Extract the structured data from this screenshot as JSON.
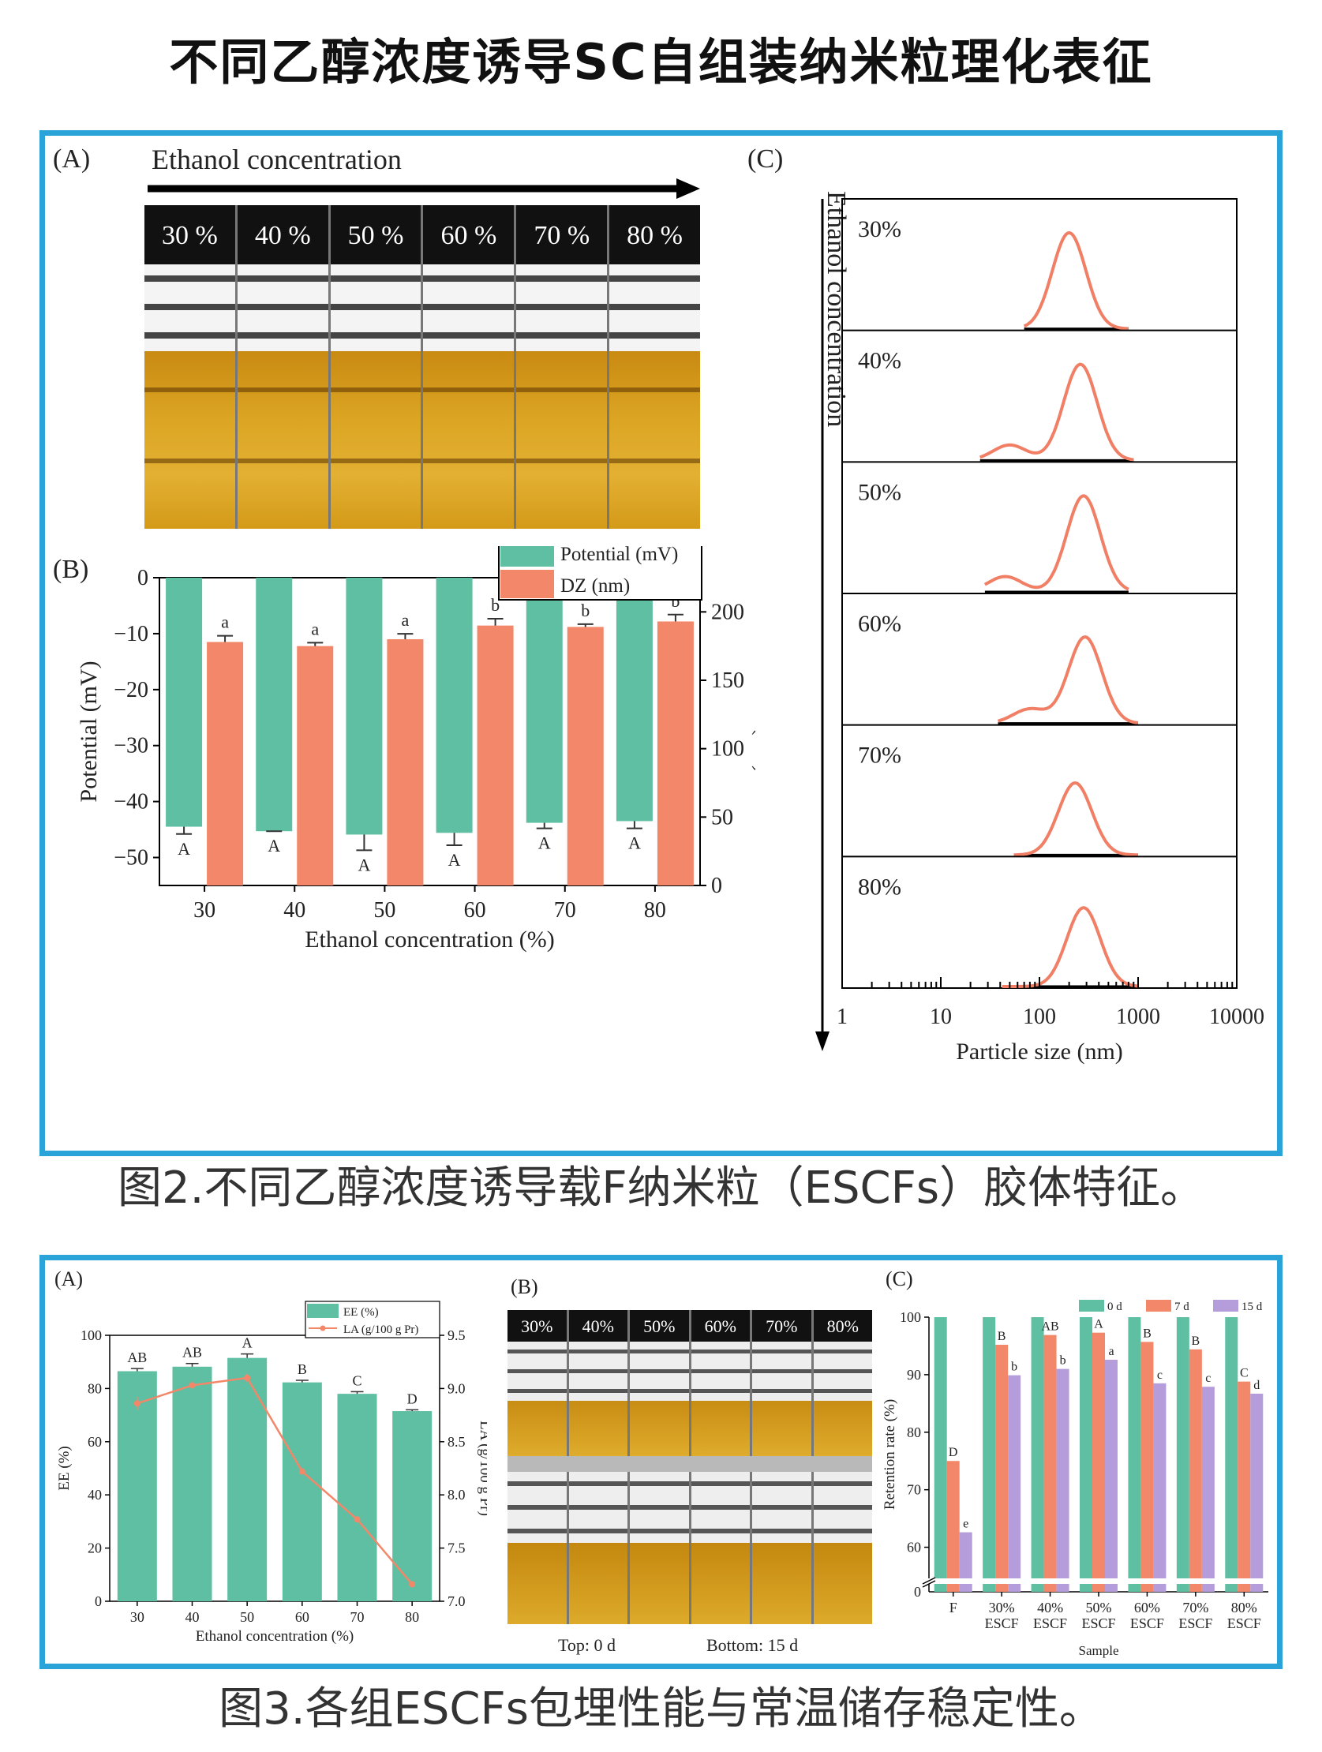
{
  "page_title": "不同乙醇浓度诱导SC自组装纳米粒理化表征",
  "fig2": {
    "caption": "图2.不同乙醇浓度诱导载F纳米粒（ESCFs）胶体特征。",
    "panel_a": {
      "label": "(A)",
      "arrow_label": "Ethanol concentration",
      "vial_labels": [
        "30 %",
        "40 %",
        "50 %",
        "60 %",
        "70 %",
        "80 %"
      ]
    },
    "panel_c": {
      "label": "(C)",
      "vertical_label": "Ethanol concentration"
    }
  },
  "fig3": {
    "caption": "图3.各组ESCFs包埋性能与常温储存稳定性。",
    "panel_b": {
      "label": "(B)",
      "vial_labels": [
        "30%",
        "40%",
        "50%",
        "60%",
        "70%",
        "80%"
      ],
      "footer_left": "Top: 0 d",
      "footer_right": "Bottom: 15 d"
    }
  },
  "colors": {
    "frame": "#2aa3d8",
    "green": "#5fbfa2",
    "orange": "#f3876a",
    "purple": "#b59ddb",
    "dls_line": "#f07f65",
    "solution": "#d9a21a"
  },
  "chart_data": [
    {
      "id": "fig2B",
      "label": "(B)",
      "type": "bar",
      "categories": [
        "30",
        "40",
        "50",
        "60",
        "70",
        "80"
      ],
      "xlabel": "Ethanol concentration (%)",
      "ylabel": "Potential (mV)",
      "y2label": "DZ (nm)",
      "ylim": [
        -55,
        0
      ],
      "y2lim": [
        0,
        225
      ],
      "yticks": [
        "0",
        "−10",
        "−20",
        "−30",
        "−40",
        "−50"
      ],
      "y2ticks": [
        "0",
        "50",
        "100",
        "150",
        "200"
      ],
      "xticks": [
        "30",
        "40",
        "50",
        "60",
        "70",
        "80"
      ],
      "legend_position": "top-right",
      "series": [
        {
          "name": "Potential (mV)",
          "axis": "left",
          "values": [
            -44.5,
            -45.3,
            -45.9,
            -45.6,
            -43.8,
            -43.5
          ],
          "errors": [
            1.3,
            0.0,
            2.8,
            2.2,
            1.0,
            1.3
          ],
          "letters": [
            "A",
            "A",
            "A",
            "A",
            "A",
            "A"
          ]
        },
        {
          "name": "DZ (nm)",
          "axis": "right",
          "values": [
            178,
            175,
            180,
            190,
            189,
            193
          ],
          "errors": [
            4.5,
            2.5,
            4.0,
            5.0,
            2.0,
            5.0
          ],
          "letters": [
            "a",
            "a",
            "a",
            "b",
            "b",
            "b"
          ]
        }
      ]
    },
    {
      "id": "fig2C",
      "type": "line",
      "xlabel": "Particle size (nm)",
      "x_scale": "log",
      "xlim": [
        1,
        10000
      ],
      "xticks": [
        "1",
        "10",
        "100",
        "1000",
        "10000"
      ],
      "series": [
        {
          "name": "30%",
          "peaks": [
            {
              "center": 200,
              "height": 1.0
            }
          ],
          "range": [
            70,
            800
          ]
        },
        {
          "name": "40%",
          "peaks": [
            {
              "center": 50,
              "height": 0.16
            },
            {
              "center": 260,
              "height": 1.0
            }
          ],
          "range": [
            25,
            900
          ]
        },
        {
          "name": "50%",
          "peaks": [
            {
              "center": 45,
              "height": 0.16
            },
            {
              "center": 280,
              "height": 1.0
            }
          ],
          "range": [
            28,
            800
          ]
        },
        {
          "name": "60%",
          "peaks": [
            {
              "center": 80,
              "height": 0.15
            },
            {
              "center": 290,
              "height": 0.9
            }
          ],
          "range": [
            38,
            1000
          ]
        },
        {
          "name": "70%",
          "peaks": [
            {
              "center": 230,
              "height": 0.75
            }
          ],
          "range": [
            55,
            1000
          ]
        },
        {
          "name": "80%",
          "peaks": [
            {
              "center": 280,
              "height": 0.82
            }
          ],
          "range": [
            42,
            1000
          ]
        }
      ]
    },
    {
      "id": "fig3A",
      "label": "(A)",
      "type": "bar",
      "categories": [
        "30",
        "40",
        "50",
        "60",
        "70",
        "80"
      ],
      "xlabel": "Ethanol concentration (%)",
      "ylabel": "EE (%)",
      "y2label": "LA (g/100 g Pr)",
      "ylim": [
        0,
        100
      ],
      "y2lim": [
        7.0,
        9.5
      ],
      "yticks": [
        "0",
        "20",
        "40",
        "60",
        "80",
        "100"
      ],
      "y2ticks": [
        "7.0",
        "7.5",
        "8.0",
        "8.5",
        "9.0",
        "9.5"
      ],
      "xticks": [
        "30",
        "40",
        "50",
        "60",
        "70",
        "80"
      ],
      "legend_position": "top-right",
      "series": [
        {
          "name": "EE (%)",
          "axis": "left",
          "values": [
            86.5,
            88.2,
            91.5,
            82.3,
            78.0,
            71.5
          ],
          "errors": [
            1.0,
            1.2,
            1.5,
            0.8,
            0.8,
            0.5
          ],
          "letters": [
            "AB",
            "AB",
            "A",
            "B",
            "C",
            "D"
          ]
        },
        {
          "name": "LA (g/100 g Pr)",
          "axis": "right",
          "values": [
            8.86,
            9.03,
            9.1,
            8.22,
            7.77,
            7.16
          ],
          "errors": [
            0.06,
            0.02,
            0.04,
            0.02,
            0.02,
            0.02
          ]
        }
      ]
    },
    {
      "id": "fig3C",
      "label": "(C)",
      "type": "bar",
      "categories": [
        "F",
        "30%\nESCF",
        "40%\nESCF",
        "50%\nESCF",
        "60%\nESCF",
        "70%\nESCF",
        "80%\nESCF"
      ],
      "xlabel": "Sample",
      "ylabel": "Retention rate (%)",
      "ylim": [
        55,
        100
      ],
      "axis_break": true,
      "yticks": [
        "0",
        "60",
        "70",
        "80",
        "90",
        "100"
      ],
      "legend_position": "top",
      "series": [
        {
          "name": "0 d",
          "values": [
            100,
            100,
            100,
            100,
            100,
            100,
            100
          ]
        },
        {
          "name": "7 d",
          "values": [
            75.0,
            95.2,
            96.9,
            97.3,
            95.7,
            94.4,
            88.8
          ],
          "letters": [
            "D",
            "B",
            "AB",
            "A",
            "B",
            "B",
            "C"
          ]
        },
        {
          "name": "15 d",
          "values": [
            62.6,
            89.9,
            91.0,
            92.6,
            88.5,
            87.9,
            86.7
          ],
          "letters": [
            "e",
            "b",
            "b",
            "a",
            "c",
            "c",
            "d"
          ]
        }
      ]
    }
  ]
}
